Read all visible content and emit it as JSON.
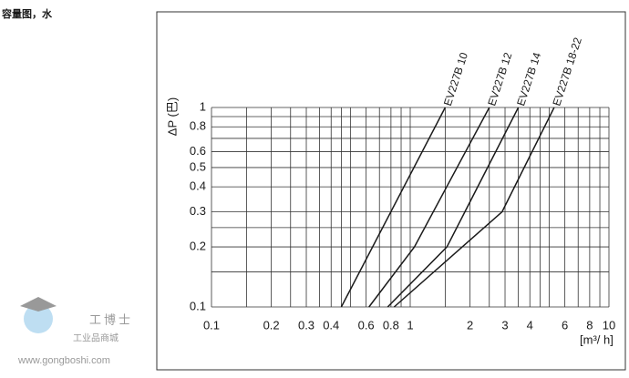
{
  "page_title": "容量图，水",
  "watermark": {
    "brand": "工博士",
    "tagline": "工业品商城",
    "url": "www.gongboshi.com"
  },
  "chart_data": {
    "type": "line",
    "log_x": true,
    "log_y": true,
    "grid": true,
    "y_label": "ΔP (巴)",
    "x_label": "[m³/ h]",
    "xlim": [
      0.1,
      10
    ],
    "ylim": [
      0.1,
      1
    ],
    "xticks": [
      0.1,
      0.2,
      0.3,
      0.4,
      0.6,
      0.8,
      1,
      2,
      3,
      4,
      6,
      8,
      10
    ],
    "yticks": [
      0.1,
      0.2,
      0.3,
      0.4,
      0.5,
      0.6,
      0.8,
      1
    ],
    "xgrid": [
      0.15,
      0.25,
      0.35,
      0.45,
      0.5,
      0.7,
      0.9,
      1.5,
      2.5,
      3.5,
      4.5,
      5,
      7,
      9
    ],
    "ygrid": [
      0.15,
      0.25,
      0.7,
      0.9
    ],
    "series": [
      {
        "name": "EV227B 10",
        "color": "#1a1a1a",
        "x": [
          0.45,
          1.5
        ],
        "values": [
          0.1,
          1
        ]
      },
      {
        "name": "EV227B 12",
        "color": "#1a1a1a",
        "x": [
          0.62,
          1.05,
          2.5
        ],
        "values": [
          0.1,
          0.2,
          1
        ]
      },
      {
        "name": "EV227B 14",
        "color": "#1a1a1a",
        "x": [
          0.77,
          1.53,
          3.5
        ],
        "values": [
          0.1,
          0.2,
          1
        ]
      },
      {
        "name": "EV227B 18-22",
        "color": "#1a1a1a",
        "x": [
          0.83,
          2.9,
          5.3
        ],
        "values": [
          0.1,
          0.3,
          1
        ]
      }
    ]
  }
}
